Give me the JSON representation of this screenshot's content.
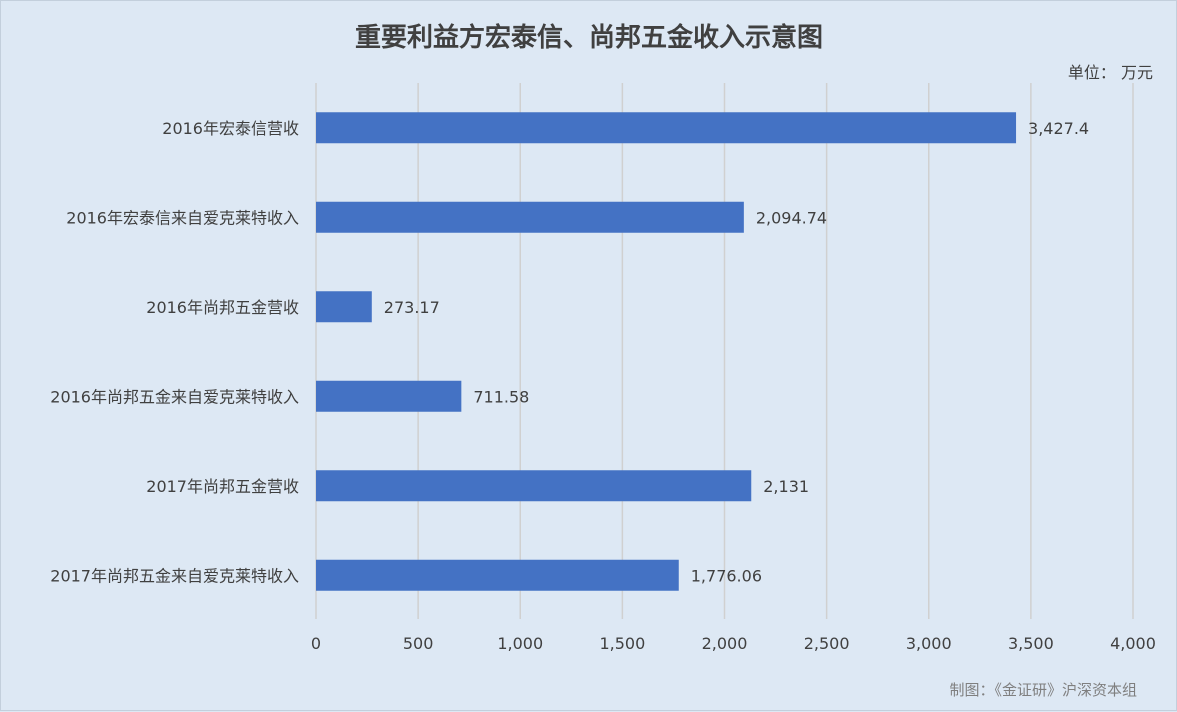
{
  "chart_data": {
    "type": "bar",
    "orientation": "horizontal",
    "title": "重要利益方宏泰信、尚邦五金收入示意图",
    "unit_label": "单位：  万元",
    "categories": [
      "2016年宏泰信营收",
      "2016年宏泰信来自爱克莱特收入",
      "2016年尚邦五金营收",
      "2016年尚邦五金来自爱克莱特收入",
      "2017年尚邦五金营收",
      "2017年尚邦五金来自爱克莱特收入"
    ],
    "values": [
      3427.4,
      2094.74,
      273.17,
      711.58,
      2131,
      1776.06
    ],
    "data_labels": [
      "3,427.4",
      "2,094.74",
      "273.17",
      "711.58",
      "2,131",
      "1,776.06"
    ],
    "xlim": [
      0,
      4000
    ],
    "x_ticks": [
      0,
      500,
      1000,
      1500,
      2000,
      2500,
      3000,
      3500,
      4000
    ],
    "x_tick_labels": [
      "0",
      "500",
      "1,000",
      "1,500",
      "2,000",
      "2,500",
      "3,000",
      "3,500",
      "4,000"
    ],
    "grid": "vertical",
    "legend": "none",
    "bar_color": "#4472c4",
    "background_color": "#dde8f4",
    "credit": "制图：《金证研》沪深资本组"
  }
}
